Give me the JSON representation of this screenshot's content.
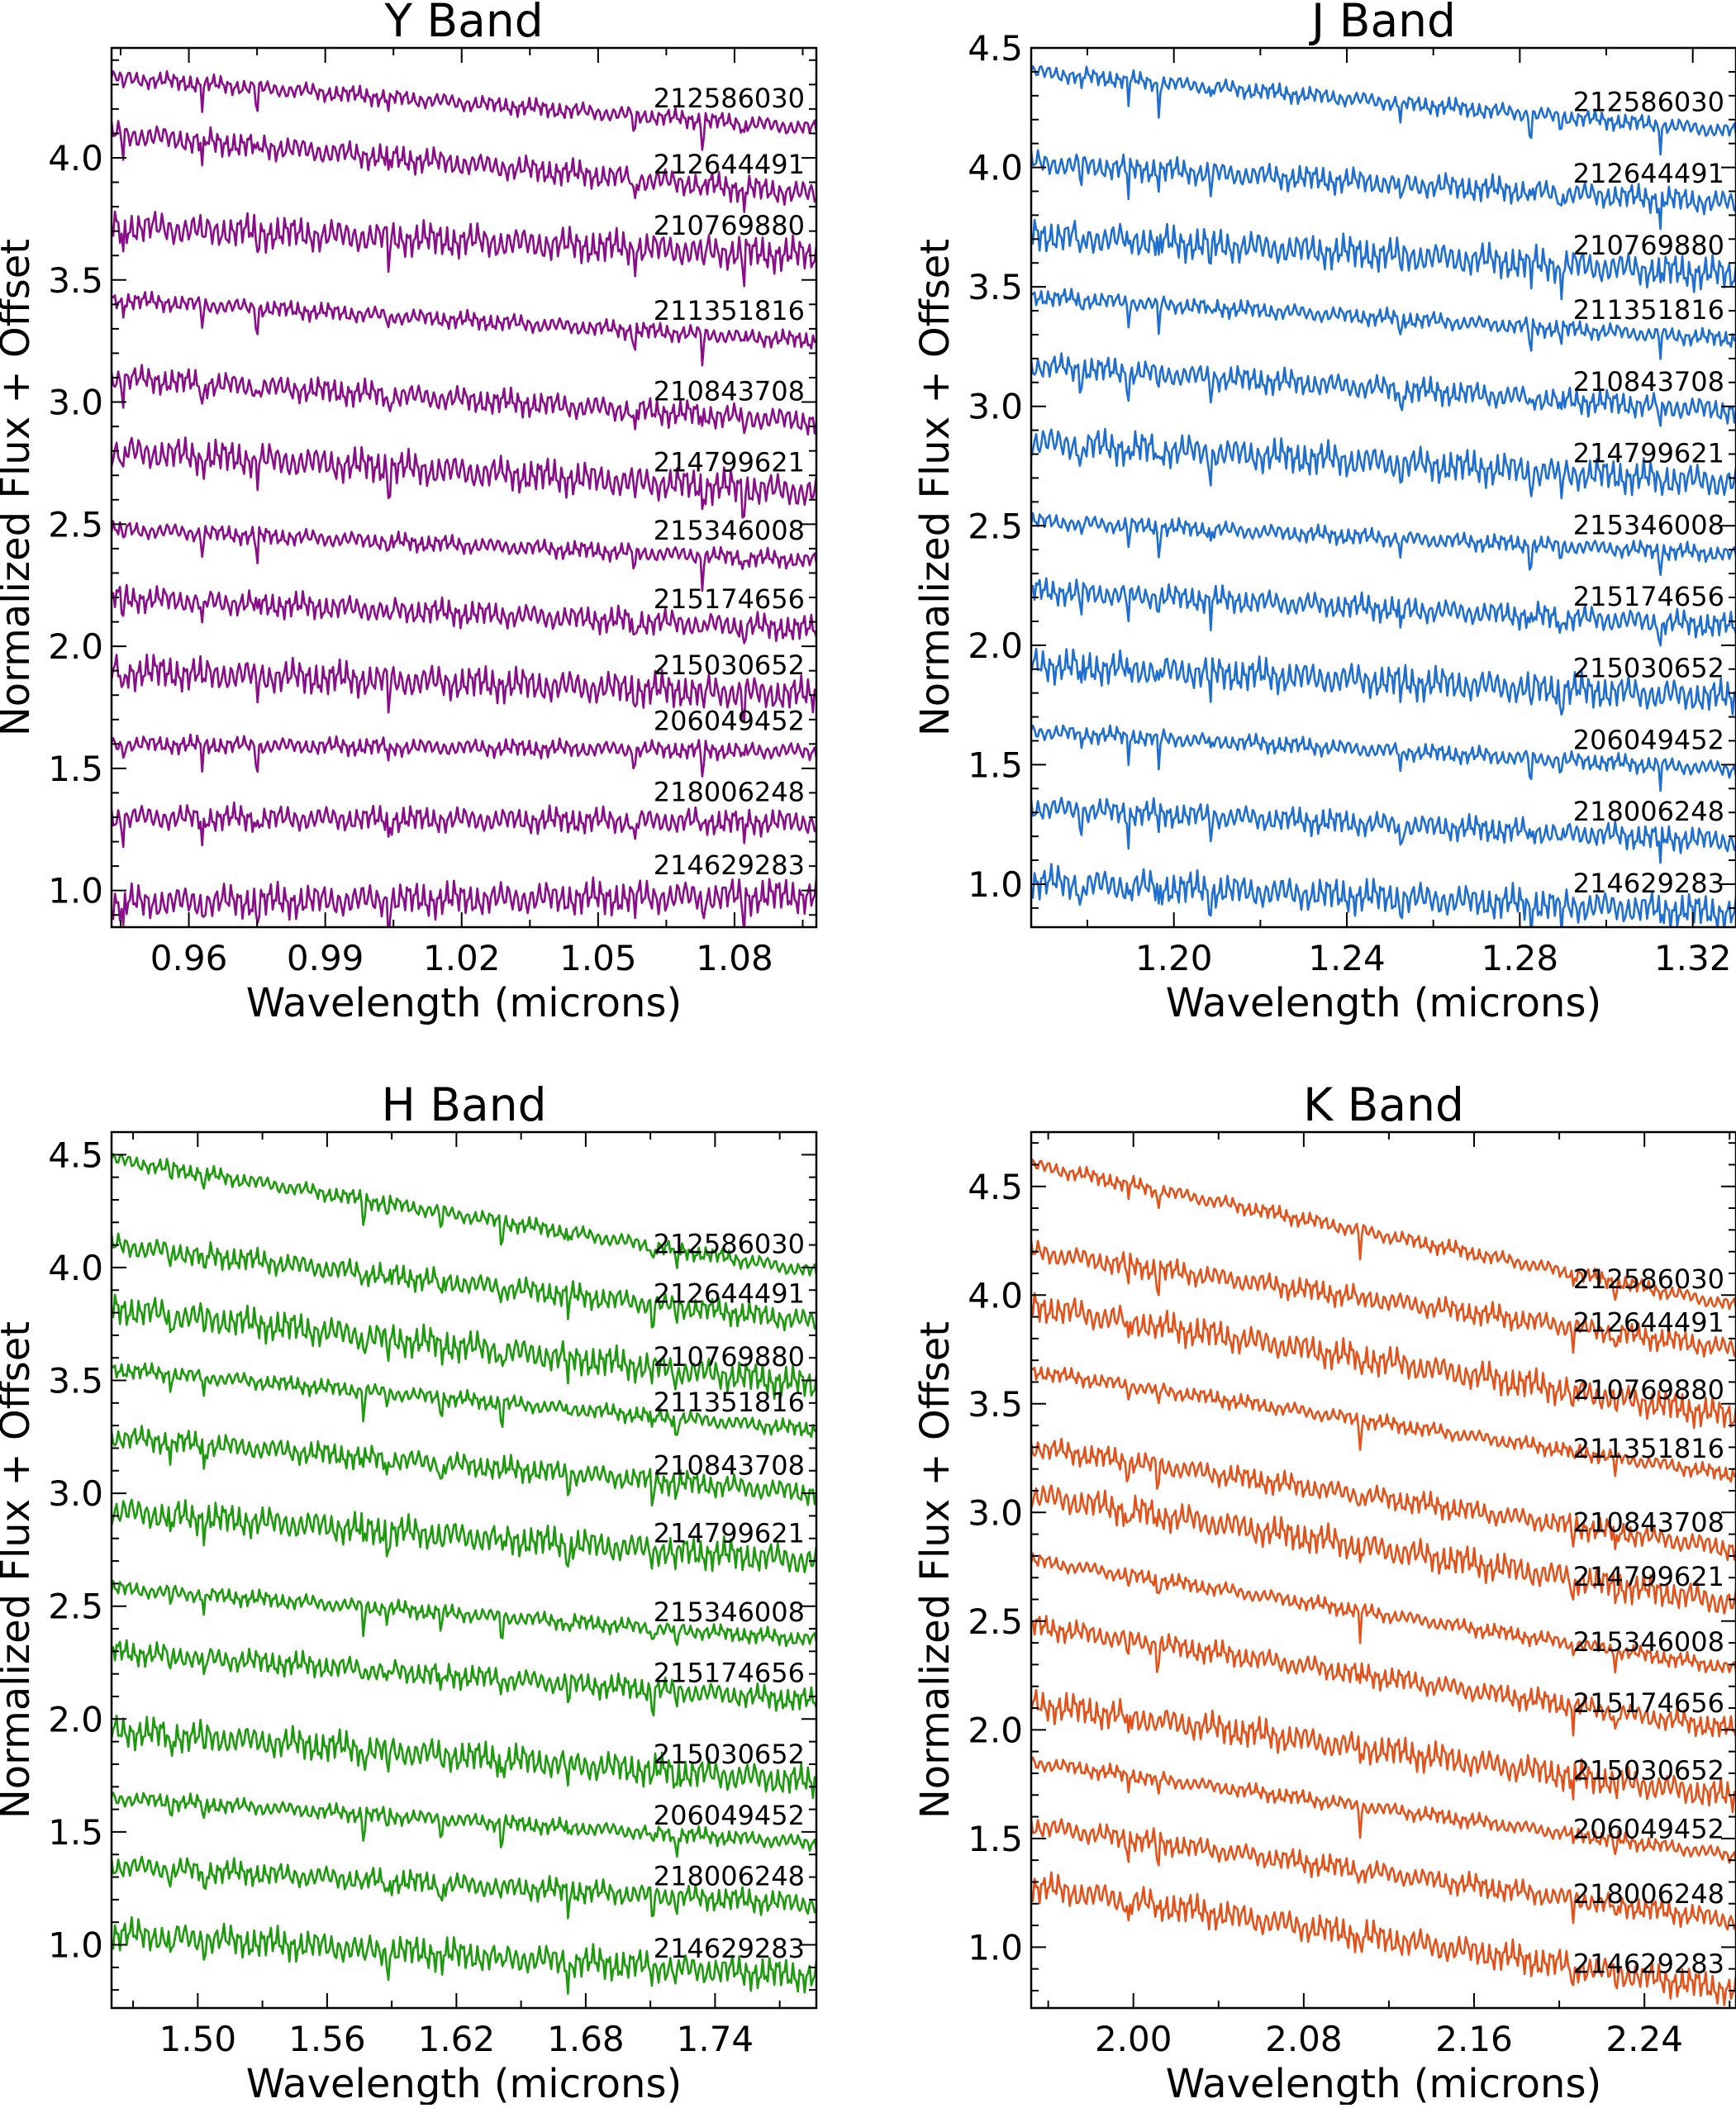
{
  "chart_data": [
    {
      "type": "line",
      "title": "Y Band",
      "xlabel": "Wavelength (microns)",
      "ylabel": "Normalized Flux + Offset",
      "xlim": [
        0.943,
        1.098
      ],
      "ylim": [
        0.85,
        4.45
      ],
      "xticks": [
        "0.96",
        "0.99",
        "1.02",
        "1.05",
        "1.08"
      ],
      "yticks": [
        "1.0",
        "1.5",
        "2.0",
        "2.5",
        "3.0",
        "3.5",
        "4.0"
      ],
      "color": "#8a0d8a",
      "series": [
        {
          "name": "212586030",
          "start": 4.33,
          "end": 4.12
        },
        {
          "name": "212644491",
          "start": 4.1,
          "end": 3.85
        },
        {
          "name": "210769880",
          "start": 3.72,
          "end": 3.6
        },
        {
          "name": "211351816",
          "start": 3.42,
          "end": 3.25
        },
        {
          "name": "210843708",
          "start": 3.1,
          "end": 2.92
        },
        {
          "name": "214799621",
          "start": 2.8,
          "end": 2.63
        },
        {
          "name": "215346008",
          "start": 2.48,
          "end": 2.35
        },
        {
          "name": "215174656",
          "start": 2.2,
          "end": 2.07
        },
        {
          "name": "215030652",
          "start": 1.9,
          "end": 1.8
        },
        {
          "name": "206049452",
          "start": 1.6,
          "end": 1.57
        },
        {
          "name": "218006248",
          "start": 1.3,
          "end": 1.28
        },
        {
          "name": "214629283",
          "start": 0.95,
          "end": 0.98
        }
      ]
    },
    {
      "type": "line",
      "title": "J Band",
      "xlabel": "Wavelength (microns)",
      "ylabel": "Normalized Flux + Offset",
      "xlim": [
        1.167,
        1.33
      ],
      "ylim": [
        0.82,
        4.5
      ],
      "xticks": [
        "1.20",
        "1.24",
        "1.28",
        "1.32"
      ],
      "yticks": [
        "1.0",
        "1.5",
        "2.0",
        "2.5",
        "3.0",
        "3.5",
        "4.0",
        "4.5"
      ],
      "color": "#1f6fd1",
      "series": [
        {
          "name": "212586030",
          "start": 4.4,
          "end": 4.15
        },
        {
          "name": "212644491",
          "start": 4.02,
          "end": 3.85
        },
        {
          "name": "210769880",
          "start": 3.72,
          "end": 3.55
        },
        {
          "name": "211351816",
          "start": 3.46,
          "end": 3.28
        },
        {
          "name": "210843708",
          "start": 3.17,
          "end": 2.98
        },
        {
          "name": "214799621",
          "start": 2.85,
          "end": 2.68
        },
        {
          "name": "215346008",
          "start": 2.52,
          "end": 2.38
        },
        {
          "name": "215174656",
          "start": 2.23,
          "end": 2.08
        },
        {
          "name": "215030652",
          "start": 1.92,
          "end": 1.78
        },
        {
          "name": "206049452",
          "start": 1.64,
          "end": 1.48
        },
        {
          "name": "218006248",
          "start": 1.32,
          "end": 1.18
        },
        {
          "name": "214629283",
          "start": 1.01,
          "end": 0.88
        }
      ]
    },
    {
      "type": "line",
      "title": "H Band",
      "xlabel": "Wavelength (microns)",
      "ylabel": "Normalized Flux + Offset",
      "xlim": [
        1.46,
        1.787
      ],
      "ylim": [
        0.72,
        4.6
      ],
      "xticks": [
        "1.50",
        "1.56",
        "1.62",
        "1.68",
        "1.74"
      ],
      "yticks": [
        "1.0",
        "1.5",
        "2.0",
        "2.5",
        "3.0",
        "3.5",
        "4.0",
        "4.5"
      ],
      "color": "#1e9a0e",
      "series": [
        {
          "name": "212586030",
          "start": 4.48,
          "end": 3.98
        },
        {
          "name": "212644491",
          "start": 4.1,
          "end": 3.76
        },
        {
          "name": "210769880",
          "start": 3.82,
          "end": 3.48
        },
        {
          "name": "211351816",
          "start": 3.55,
          "end": 3.28
        },
        {
          "name": "210843708",
          "start": 3.25,
          "end": 3.0
        },
        {
          "name": "214799621",
          "start": 2.92,
          "end": 2.7
        },
        {
          "name": "215346008",
          "start": 2.58,
          "end": 2.35
        },
        {
          "name": "215174656",
          "start": 2.3,
          "end": 2.08
        },
        {
          "name": "215030652",
          "start": 1.95,
          "end": 1.72
        },
        {
          "name": "206049452",
          "start": 1.65,
          "end": 1.45
        },
        {
          "name": "218006248",
          "start": 1.35,
          "end": 1.18
        },
        {
          "name": "214629283",
          "start": 1.05,
          "end": 0.86
        }
      ]
    },
    {
      "type": "line",
      "title": "K Band",
      "xlabel": "Wavelength (microns)",
      "ylabel": "Normalized Flux + Offset",
      "xlim": [
        1.952,
        2.283
      ],
      "ylim": [
        0.72,
        4.75
      ],
      "xticks": [
        "2.00",
        "2.08",
        "2.16",
        "2.24"
      ],
      "yticks": [
        "1.0",
        "1.5",
        "2.0",
        "2.5",
        "3.0",
        "3.5",
        "4.0",
        "4.5"
      ],
      "color": "#e2531b",
      "series": [
        {
          "name": "212586030",
          "start": 4.6,
          "end": 3.95
        },
        {
          "name": "212644491",
          "start": 4.2,
          "end": 3.75
        },
        {
          "name": "210769880",
          "start": 3.95,
          "end": 3.44
        },
        {
          "name": "211351816",
          "start": 3.65,
          "end": 3.17
        },
        {
          "name": "210843708",
          "start": 3.3,
          "end": 2.83
        },
        {
          "name": "214799621",
          "start": 3.08,
          "end": 2.58
        },
        {
          "name": "215346008",
          "start": 2.78,
          "end": 2.28
        },
        {
          "name": "215174656",
          "start": 2.48,
          "end": 2.0
        },
        {
          "name": "215030652",
          "start": 2.12,
          "end": 1.69
        },
        {
          "name": "206049452",
          "start": 1.85,
          "end": 1.42
        },
        {
          "name": "218006248",
          "start": 1.56,
          "end": 1.12
        },
        {
          "name": "214629283",
          "start": 1.28,
          "end": 0.8
        }
      ]
    }
  ]
}
